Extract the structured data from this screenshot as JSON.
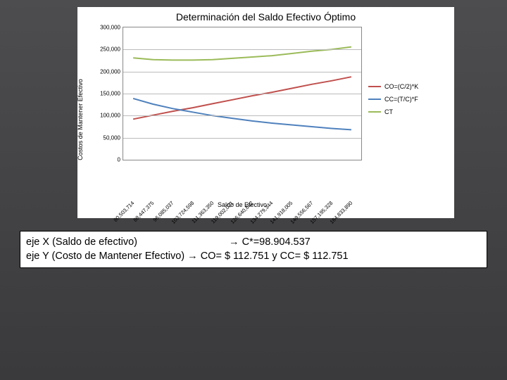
{
  "chart": {
    "title": "Determinación del Saldo Efectivo Óptimo",
    "y_axis_label": "Costos de Mantener Efectivo",
    "x_axis_label": "Saldo de Efectivo",
    "background_color": "#ffffff",
    "grid_color": "#bbbbbb",
    "border_color": "#888888",
    "ylim": [
      0,
      300000
    ],
    "ytick_step": 50000,
    "y_ticks": [
      "0",
      "50,000",
      "100,000",
      "150,000",
      "200,000",
      "250,000",
      "300,000"
    ],
    "x_categories": [
      "80,503,714",
      "88,447,375",
      "96,085,037",
      "103,724,598",
      "111,363,350",
      "119,002,021",
      "126,640,652",
      "134,279,344",
      "141,918,005",
      "149,556,567",
      "157,195,328",
      "164,833,890"
    ],
    "series": [
      {
        "name": "CO",
        "label": "CO=(C/2)*K",
        "color": "#c0504d",
        "line_width": 2,
        "values": [
          92000,
          101000,
          110000,
          118000,
          127000,
          136000,
          145000,
          153000,
          162000,
          171000,
          179000,
          188000
        ]
      },
      {
        "name": "CC",
        "label": "CC=(T/C)*F",
        "color": "#4f81bd",
        "line_width": 2,
        "values": [
          139000,
          126000,
          116000,
          108000,
          100000,
          94000,
          88000,
          83000,
          79000,
          75000,
          71000,
          68000
        ]
      },
      {
        "name": "CT",
        "label": "CT",
        "color": "#9bbb59",
        "line_width": 2,
        "values": [
          231000,
          227000,
          226000,
          226000,
          227000,
          230000,
          233000,
          236000,
          241000,
          246000,
          250000,
          256000
        ]
      }
    ]
  },
  "annotation": {
    "line1_left": "eje X (Saldo de efectivo)",
    "line1_right": "C*=98.904.537",
    "line2_left": "eje Y (Costo de Mantener Efectivo)",
    "line2_right": "CO= $ 112.751  y CC= $ 112.751",
    "arrow": "→"
  }
}
